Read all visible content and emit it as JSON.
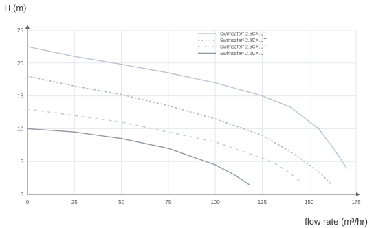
{
  "chart_data": {
    "type": "line",
    "xlabel": "flow rate (m³/hr)",
    "ylabel": "H (m)",
    "xlim": [
      0,
      175
    ],
    "ylim": [
      0,
      25
    ],
    "xticks": [
      "0",
      "25",
      "50",
      "75",
      "100",
      "125",
      "150",
      "175"
    ],
    "yticks": [
      "0",
      "5",
      "10",
      "15",
      "20",
      "25"
    ],
    "grid": true,
    "legend_position": "top-right",
    "series": [
      {
        "name": "Swimsafer² 2.5CX.UT",
        "color": "#b9c3cf",
        "dash": "solid",
        "x": [
          0,
          25,
          50,
          75,
          100,
          125,
          140,
          155,
          163,
          170
        ],
        "y": [
          22.5,
          21,
          19.8,
          18.5,
          17,
          15,
          13.3,
          10,
          7,
          4
        ]
      },
      {
        "name": "Swimsafer² 2.5CX.UT",
        "color": "#b0b6be",
        "dash": "dotted",
        "x": [
          0,
          25,
          50,
          75,
          100,
          125,
          140,
          155,
          162
        ],
        "y": [
          18,
          16.5,
          15.2,
          13.5,
          11.5,
          9,
          6.5,
          3.5,
          1.5
        ]
      },
      {
        "name": "Swimsafer² 2.5CX.UT",
        "color": "#c3ccd6",
        "dash": "dashed",
        "x": [
          0,
          25,
          50,
          75,
          100,
          115,
          130,
          140,
          145
        ],
        "y": [
          13,
          12,
          11,
          9.5,
          8,
          6.5,
          5,
          3.2,
          2
        ]
      },
      {
        "name": "Swimsafer² 2.5CX.UT",
        "color": "#8d97a4",
        "dash": "solid",
        "x": [
          0,
          25,
          50,
          75,
          100,
          110,
          118
        ],
        "y": [
          10,
          9.5,
          8.5,
          7,
          4.5,
          3,
          1.5
        ]
      }
    ]
  }
}
